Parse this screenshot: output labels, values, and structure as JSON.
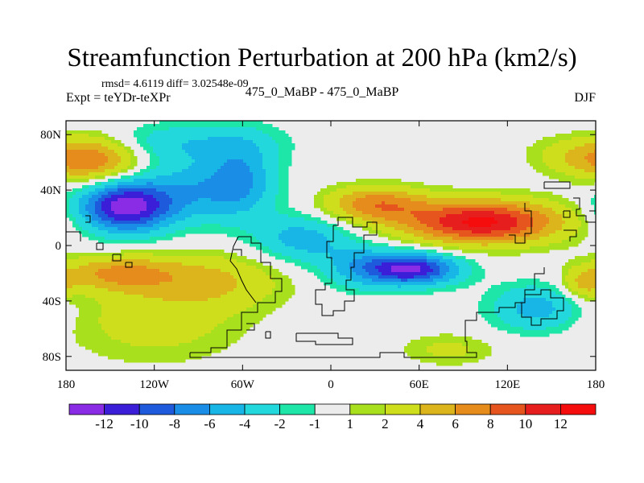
{
  "chart_data": {
    "type": "heatmap",
    "title": "Streamfunction Perturbation at 200 hPa (km2/s)",
    "stats_line": "rmsd= 4.6119 diff= 3.02548e-09",
    "experiment_label": "Expt = teYDr-teXPr",
    "runs_label": "475_0_MaBP - 475_0_MaBP",
    "season": "DJF",
    "x_axis": {
      "range": [
        -180,
        180
      ],
      "ticks": [
        {
          "value": -180,
          "label": "180"
        },
        {
          "value": -120,
          "label": "120W"
        },
        {
          "value": -60,
          "label": "60W"
        },
        {
          "value": 0,
          "label": "0"
        },
        {
          "value": 60,
          "label": "60E"
        },
        {
          "value": 120,
          "label": "120E"
        },
        {
          "value": 180,
          "label": "180"
        }
      ]
    },
    "y_axis": {
      "range": [
        -90,
        90
      ],
      "ticks": [
        {
          "value": 80,
          "label": "80N"
        },
        {
          "value": 40,
          "label": "40N"
        },
        {
          "value": 0,
          "label": "0"
        },
        {
          "value": -40,
          "label": "40S"
        },
        {
          "value": -80,
          "label": "80S"
        }
      ]
    },
    "contour_levels": [
      -12,
      -10,
      -8,
      -6,
      -4,
      -2,
      -1,
      1,
      2,
      4,
      6,
      8,
      10,
      12
    ],
    "colorbar_labels": [
      "-12",
      "-10",
      "-8",
      "-6",
      "-4",
      "-2",
      "-1",
      "1",
      "2",
      "4",
      "6",
      "8",
      "10",
      "12"
    ],
    "colorbar_colors": [
      "#8a2be6",
      "#3a1ed8",
      "#1e5adc",
      "#1a8ee6",
      "#18b6e6",
      "#22d8dc",
      "#1ee6a8",
      "#ececec",
      "#a8e01e",
      "#cede1c",
      "#dcb41c",
      "#e68c1c",
      "#e6551e",
      "#e61e1e",
      "#f50c0c"
    ],
    "background_value": 0,
    "field_features": [
      {
        "lon": -140,
        "lat": 28,
        "amp": -13,
        "sx": 22,
        "sy": 13,
        "note": "cyclonic minimum over subtropical North Pacific"
      },
      {
        "lon": 55,
        "lat": -17,
        "amp": -12,
        "sx": 22,
        "sy": 8
      },
      {
        "lon": 102,
        "lat": 17,
        "amp": 12.5,
        "sx": 38,
        "sy": 11,
        "note": "anticyclone over South/Southeast Asia"
      },
      {
        "lon": -90,
        "lat": 40,
        "amp": -5,
        "sx": 28,
        "sy": 16
      },
      {
        "lon": -60,
        "lat": 50,
        "amp": -4.5,
        "sx": 16,
        "sy": 20
      },
      {
        "lon": -20,
        "lat": 5,
        "amp": -5,
        "sx": 22,
        "sy": 12
      },
      {
        "lon": 20,
        "lat": -15,
        "amp": -4,
        "sx": 20,
        "sy": 12
      },
      {
        "lon": -100,
        "lat": 74,
        "amp": -3.5,
        "sx": 42,
        "sy": 10
      },
      {
        "lon": 30,
        "lat": 30,
        "amp": 7,
        "sx": 24,
        "sy": 9
      },
      {
        "lon": -160,
        "lat": 62,
        "amp": 7.5,
        "sx": 22,
        "sy": 12
      },
      {
        "lon": 165,
        "lat": 65,
        "amp": 3,
        "sx": 22,
        "sy": 10
      },
      {
        "lon": 140,
        "lat": -45,
        "amp": -5,
        "sx": 22,
        "sy": 12
      },
      {
        "lon": -120,
        "lat": -55,
        "amp": 3,
        "sx": 42,
        "sy": 20
      },
      {
        "lon": -145,
        "lat": -20,
        "amp": 6,
        "sx": 28,
        "sy": 9
      },
      {
        "lon": -80,
        "lat": -25,
        "amp": 4,
        "sx": 35,
        "sy": 14
      },
      {
        "lon": 80,
        "lat": -75,
        "amp": 2.5,
        "sx": 22,
        "sy": 8
      },
      {
        "lon": 172,
        "lat": -28,
        "amp": 4,
        "sx": 10,
        "sy": 8
      }
    ],
    "land_outline_note": "coarse-grid continental outlines (Americas, Africa, Eurasia, Australia, Antarctica)"
  }
}
